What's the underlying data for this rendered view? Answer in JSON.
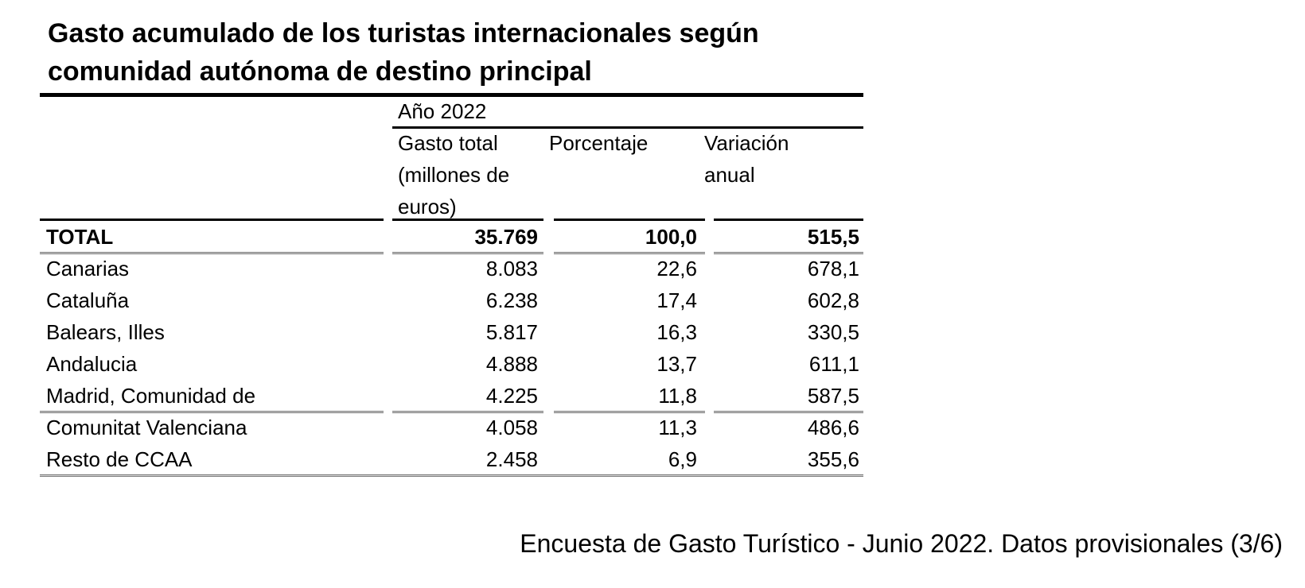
{
  "title": {
    "line1": "Gasto acumulado de los turistas internacionales según",
    "line2": "comunidad autónoma de destino principal"
  },
  "table": {
    "group_header": "Año 2022",
    "columns": [
      {
        "lines": [
          "Gasto total",
          "(millones de",
          "euros)"
        ]
      },
      {
        "lines": [
          "Porcentaje"
        ]
      },
      {
        "lines": [
          "Variación",
          "anual"
        ]
      }
    ],
    "rows": [
      {
        "name": "TOTAL",
        "gasto": "35.769",
        "porcentaje": "100,0",
        "variacion": "515,5"
      },
      {
        "name": "Canarias",
        "gasto": "8.083",
        "porcentaje": "22,6",
        "variacion": "678,1"
      },
      {
        "name": "Cataluña",
        "gasto": "6.238",
        "porcentaje": "17,4",
        "variacion": "602,8"
      },
      {
        "name": "Balears, Illes",
        "gasto": "5.817",
        "porcentaje": "16,3",
        "variacion": "330,5"
      },
      {
        "name": "Andalucia",
        "gasto": "4.888",
        "porcentaje": "13,7",
        "variacion": "611,1"
      },
      {
        "name": "Madrid, Comunidad de",
        "gasto": "4.225",
        "porcentaje": "11,8",
        "variacion": "587,5"
      },
      {
        "name": "Comunitat Valenciana",
        "gasto": "4.058",
        "porcentaje": "11,3",
        "variacion": "486,6"
      },
      {
        "name": "Resto de CCAA",
        "gasto": "2.458",
        "porcentaje": "6,9",
        "variacion": "355,6"
      }
    ]
  },
  "footer": "Encuesta de Gasto Turístico - Junio 2022. Datos provisionales (3/6)"
}
